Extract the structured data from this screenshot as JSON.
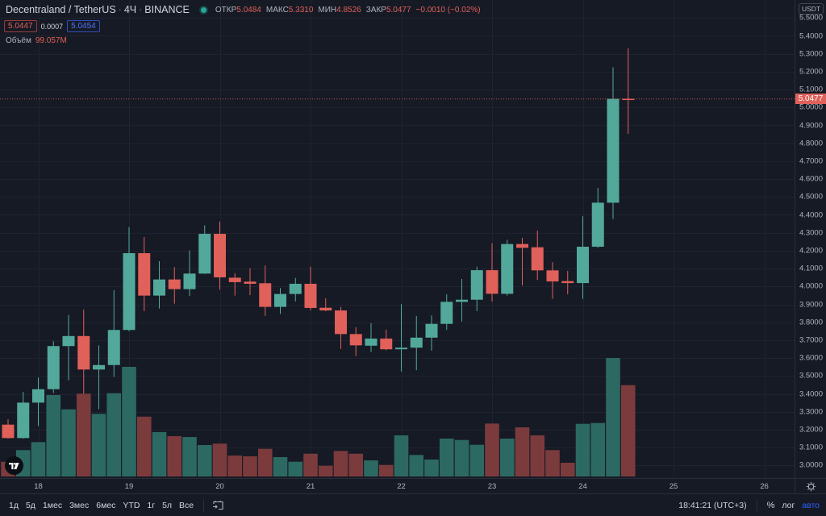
{
  "header": {
    "symbol": "Decentraland / TetherUS",
    "separator": "·",
    "interval": "4Ч",
    "exchange": "BINANCE",
    "ohlc": [
      {
        "label": "ОТКР",
        "value": "5.0484"
      },
      {
        "label": "МАКС",
        "value": "5.3310"
      },
      {
        "label": "МИН",
        "value": "4.8526"
      },
      {
        "label": "ЗАКР",
        "value": "5.0477"
      }
    ],
    "change": "−0.0010 (−0.02%)",
    "bid": "5.0447",
    "spread": "0.0007",
    "ask": "5.0454",
    "volume_label": "Объём",
    "volume_value": "99.057M"
  },
  "price_axis": {
    "currency": "USDT",
    "current_price": "5.0477"
  },
  "toolbar": {
    "ranges": [
      "1д",
      "5д",
      "1мес",
      "3мес",
      "6мес",
      "YTD",
      "1г",
      "5л",
      "Все"
    ],
    "clock": "18:41:21 (UTC+3)",
    "percent": "%",
    "log": "лог",
    "auto": "авто"
  },
  "colors": {
    "background": "#161a25",
    "up": "#52a99b",
    "down": "#e0605a",
    "volume_up": "#2c6962",
    "volume_down": "#7b3b3c",
    "grid": "#1f2331",
    "status_dot": "#26a69a",
    "accent": "#2962ff"
  },
  "chart_data": {
    "type": "candlestick",
    "title": "Decentraland / TetherUS · 4Ч · BINANCE",
    "xlabel": "",
    "ylabel": "USDT",
    "ylim": [
      2.95,
      5.52
    ],
    "grid": true,
    "x_ticks": [
      {
        "label": "18",
        "index": 2
      },
      {
        "label": "19",
        "index": 8
      },
      {
        "label": "20",
        "index": 14
      },
      {
        "label": "21",
        "index": 20
      },
      {
        "label": "22",
        "index": 26
      },
      {
        "label": "23",
        "index": 32
      },
      {
        "label": "24",
        "index": 38
      },
      {
        "label": "25",
        "index": 44
      },
      {
        "label": "26",
        "index": 50
      }
    ],
    "y_ticks": [
      "5.5000",
      "5.4000",
      "5.3000",
      "5.2000",
      "5.1000",
      "5.0000",
      "4.9000",
      "4.8000",
      "4.7000",
      "4.6000",
      "4.5000",
      "4.4000",
      "4.3000",
      "4.2000",
      "4.1000",
      "4.0000",
      "3.9000",
      "3.8000",
      "3.7000",
      "3.6000",
      "3.5000",
      "3.4000",
      "3.3000",
      "3.2000",
      "3.1000",
      "3.0000"
    ],
    "current_price": 5.0477,
    "volume_unit": "M",
    "candles": [
      {
        "o": 3.228,
        "h": 3.258,
        "l": 3.15,
        "c": 3.153,
        "v": 16.0
      },
      {
        "o": 3.153,
        "h": 3.411,
        "l": 3.15,
        "c": 3.351,
        "v": 28.6
      },
      {
        "o": 3.351,
        "h": 3.491,
        "l": 3.221,
        "c": 3.426,
        "v": 37.3
      },
      {
        "o": 3.426,
        "h": 3.694,
        "l": 3.405,
        "c": 3.667,
        "v": 88.3
      },
      {
        "o": 3.667,
        "h": 3.841,
        "l": 3.476,
        "c": 3.723,
        "v": 72.8
      },
      {
        "o": 3.723,
        "h": 3.871,
        "l": 3.401,
        "c": 3.536,
        "v": 89.8
      },
      {
        "o": 3.536,
        "h": 3.671,
        "l": 3.315,
        "c": 3.561,
        "v": 67.9
      },
      {
        "o": 3.561,
        "h": 3.979,
        "l": 3.495,
        "c": 3.757,
        "v": 90.3
      },
      {
        "o": 3.757,
        "h": 4.332,
        "l": 3.75,
        "c": 4.186,
        "v": 118.9
      },
      {
        "o": 4.186,
        "h": 4.276,
        "l": 3.862,
        "c": 3.949,
        "v": 64.9
      },
      {
        "o": 3.949,
        "h": 4.141,
        "l": 3.877,
        "c": 4.039,
        "v": 48.1
      },
      {
        "o": 4.039,
        "h": 4.108,
        "l": 3.904,
        "c": 3.985,
        "v": 43.7
      },
      {
        "o": 3.985,
        "h": 4.201,
        "l": 3.946,
        "c": 4.072,
        "v": 42.8
      },
      {
        "o": 4.072,
        "h": 4.342,
        "l": 4.07,
        "c": 4.294,
        "v": 34.1
      },
      {
        "o": 4.294,
        "h": 4.363,
        "l": 3.982,
        "c": 4.051,
        "v": 35.6
      },
      {
        "o": 4.049,
        "h": 4.075,
        "l": 3.949,
        "c": 4.024,
        "v": 22.7
      },
      {
        "o": 4.027,
        "h": 4.102,
        "l": 3.952,
        "c": 4.015,
        "v": 21.9
      },
      {
        "o": 4.018,
        "h": 4.117,
        "l": 3.836,
        "c": 3.886,
        "v": 30.0
      },
      {
        "o": 3.886,
        "h": 3.991,
        "l": 3.847,
        "c": 3.958,
        "v": 21.0
      },
      {
        "o": 3.958,
        "h": 4.048,
        "l": 3.916,
        "c": 4.015,
        "v": 16.0
      },
      {
        "o": 4.015,
        "h": 4.111,
        "l": 3.866,
        "c": 3.88,
        "v": 24.7
      },
      {
        "o": 3.881,
        "h": 3.934,
        "l": 3.862,
        "c": 3.866,
        "v": 11.6
      },
      {
        "o": 3.866,
        "h": 3.886,
        "l": 3.651,
        "c": 3.734,
        "v": 27.7
      },
      {
        "o": 3.734,
        "h": 3.772,
        "l": 3.611,
        "c": 3.671,
        "v": 24.7
      },
      {
        "o": 3.669,
        "h": 3.795,
        "l": 3.633,
        "c": 3.709,
        "v": 17.5
      },
      {
        "o": 3.709,
        "h": 3.759,
        "l": 3.643,
        "c": 3.649,
        "v": 12.5
      },
      {
        "o": 3.649,
        "h": 3.901,
        "l": 3.525,
        "c": 3.658,
        "v": 44.6
      },
      {
        "o": 3.658,
        "h": 3.835,
        "l": 3.532,
        "c": 3.714,
        "v": 23.3
      },
      {
        "o": 3.714,
        "h": 3.838,
        "l": 3.641,
        "c": 3.791,
        "v": 18.4
      },
      {
        "o": 3.791,
        "h": 3.956,
        "l": 3.757,
        "c": 3.914,
        "v": 41.1
      },
      {
        "o": 3.914,
        "h": 4.042,
        "l": 3.805,
        "c": 3.926,
        "v": 39.6
      },
      {
        "o": 3.926,
        "h": 4.111,
        "l": 3.862,
        "c": 4.091,
        "v": 34.4
      },
      {
        "o": 4.091,
        "h": 4.241,
        "l": 3.916,
        "c": 3.959,
        "v": 57.4
      },
      {
        "o": 3.959,
        "h": 4.261,
        "l": 3.949,
        "c": 4.237,
        "v": 41.1
      },
      {
        "o": 4.237,
        "h": 4.272,
        "l": 4.006,
        "c": 4.216,
        "v": 53.3
      },
      {
        "o": 4.219,
        "h": 4.312,
        "l": 4.036,
        "c": 4.09,
        "v": 44.6
      },
      {
        "o": 4.09,
        "h": 4.136,
        "l": 3.931,
        "c": 4.028,
        "v": 28.6
      },
      {
        "o": 4.03,
        "h": 4.087,
        "l": 3.956,
        "c": 4.019,
        "v": 14.9
      },
      {
        "o": 4.019,
        "h": 4.392,
        "l": 3.931,
        "c": 4.222,
        "v": 57.1
      },
      {
        "o": 4.222,
        "h": 4.55,
        "l": 4.215,
        "c": 4.468,
        "v": 58.0
      },
      {
        "o": 4.468,
        "h": 5.225,
        "l": 4.377,
        "c": 5.0484,
        "v": 128.5
      },
      {
        "o": 5.0484,
        "h": 5.331,
        "l": 4.8526,
        "c": 5.0477,
        "v": 99.057
      }
    ]
  }
}
